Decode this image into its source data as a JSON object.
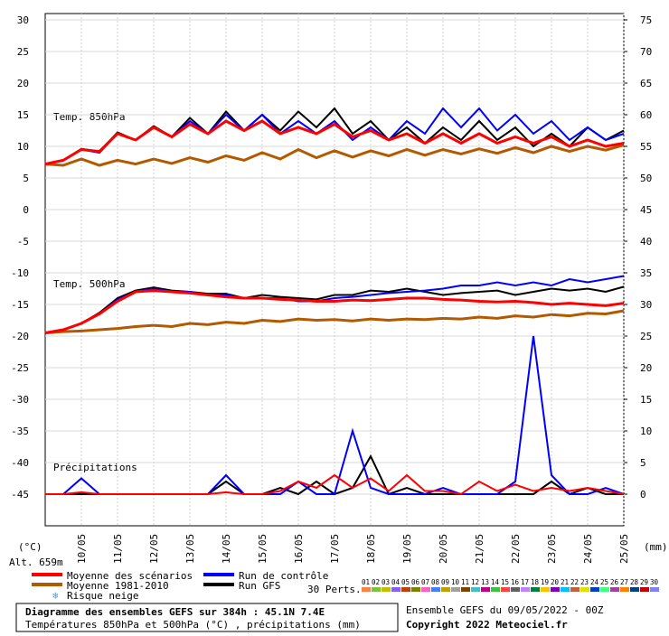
{
  "chart_data": {
    "type": "line",
    "title": "Diagramme des ensembles GEFS sur 384h : 45.1N 7.4E",
    "subtitle": "Températures 850hPa et 500hPa (°C) , précipitations (mm)",
    "run_info": "Ensemble GEFS du 09/05/2022 - 00Z",
    "copyright": "Copyright 2022 Meteociel.fr",
    "altitude": "Alt. 659m",
    "ylabel": "(°C)",
    "y2label": "(mm)",
    "annotations": [
      "Temp. 850hPa",
      "Temp. 500hPa",
      "Précipitations"
    ],
    "snow_label": "Risque neige",
    "xlim": [
      0,
      384
    ],
    "ylim": [
      -50,
      30
    ],
    "y2lim": [
      -5,
      75
    ],
    "yticks": [
      30,
      25,
      20,
      15,
      10,
      5,
      0,
      -5,
      -10,
      -15,
      -20,
      -25,
      -30,
      -35,
      -40,
      -45
    ],
    "y2ticks": [
      75,
      70,
      65,
      60,
      55,
      50,
      45,
      40,
      35,
      30,
      25,
      20,
      15,
      10,
      5,
      0
    ],
    "xticks": [
      {
        "value": 24,
        "label": "10/05"
      },
      {
        "value": 48,
        "label": "11/05"
      },
      {
        "value": 72,
        "label": "12/05"
      },
      {
        "value": 96,
        "label": "13/05"
      },
      {
        "value": 120,
        "label": "14/05"
      },
      {
        "value": 144,
        "label": "15/05"
      },
      {
        "value": 168,
        "label": "16/05"
      },
      {
        "value": 192,
        "label": "17/05"
      },
      {
        "value": 216,
        "label": "18/05"
      },
      {
        "value": 240,
        "label": "19/05"
      },
      {
        "value": 264,
        "label": "20/05"
      },
      {
        "value": 288,
        "label": "21/05"
      },
      {
        "value": 312,
        "label": "22/05"
      },
      {
        "value": 336,
        "label": "23/05"
      },
      {
        "value": 360,
        "label": "24/05"
      },
      {
        "value": 384,
        "label": "25/05"
      }
    ],
    "grid": true,
    "x": [
      0,
      12,
      24,
      36,
      48,
      60,
      72,
      84,
      96,
      108,
      120,
      132,
      144,
      156,
      168,
      180,
      192,
      204,
      216,
      228,
      240,
      252,
      264,
      276,
      288,
      300,
      312,
      324,
      336,
      348,
      360,
      372,
      384
    ],
    "series": [
      {
        "name": "Moyenne des scénarios",
        "color": "#ff0000",
        "width": 3,
        "values850": [
          7.2,
          7.8,
          9.5,
          9.2,
          12,
          11,
          13,
          11.5,
          13.5,
          12,
          14,
          12.5,
          14,
          12,
          13,
          12,
          13.5,
          11.5,
          12.5,
          11,
          12,
          10.5,
          12,
          10.5,
          12,
          10.5,
          11.5,
          10.5,
          11.5,
          10,
          11,
          10,
          10.5
        ],
        "values500": [
          -19.5,
          -19,
          -18,
          -16.5,
          -14.5,
          -13,
          -12.8,
          -13,
          -13.2,
          -13.5,
          -13.8,
          -14,
          -14,
          -14.2,
          -14.3,
          -14.5,
          -14.5,
          -14.3,
          -14.4,
          -14.2,
          -14,
          -14,
          -14.2,
          -14.3,
          -14.5,
          -14.6,
          -14.5,
          -14.7,
          -15,
          -14.8,
          -15,
          -15.2,
          -14.8
        ],
        "precip": [
          0,
          0,
          0.3,
          0,
          0,
          0,
          0,
          0,
          0,
          0,
          0.3,
          0,
          0,
          0.5,
          2,
          1,
          3,
          1,
          2.5,
          0.5,
          3,
          0.5,
          0.5,
          0,
          2,
          0.5,
          1.5,
          0.5,
          1,
          0.5,
          1,
          0.5,
          0
        ]
      },
      {
        "name": "Moyenne 1981-2010",
        "color": "#b35900",
        "width": 3,
        "values850": [
          7.2,
          7,
          8,
          7,
          7.8,
          7.2,
          8,
          7.3,
          8.2,
          7.5,
          8.5,
          7.8,
          9,
          8,
          9.5,
          8.2,
          9.3,
          8.3,
          9.3,
          8.5,
          9.5,
          8.6,
          9.5,
          8.8,
          9.6,
          8.9,
          9.8,
          9,
          10,
          9.2,
          10,
          9.4,
          10.2
        ],
        "values500": [
          -19.5,
          -19.3,
          -19.2,
          -19,
          -18.8,
          -18.5,
          -18.3,
          -18.5,
          -18,
          -18.2,
          -17.8,
          -18,
          -17.5,
          -17.7,
          -17.3,
          -17.5,
          -17.4,
          -17.6,
          -17.3,
          -17.5,
          -17.3,
          -17.4,
          -17.2,
          -17.3,
          -17,
          -17.2,
          -16.8,
          -17,
          -16.6,
          -16.8,
          -16.4,
          -16.5,
          -16
        ]
      },
      {
        "name": "Run de contrôle",
        "color": "#0000ff",
        "width": 2,
        "values850": [
          7.2,
          7.8,
          9.5,
          9,
          12,
          11,
          13,
          11.5,
          14,
          12,
          15,
          12.5,
          15,
          12,
          14,
          12,
          14,
          11,
          13,
          11,
          14,
          12,
          16,
          13,
          16,
          12.5,
          15,
          12,
          14,
          11,
          13,
          11,
          12
        ],
        "values500": [
          -19.5,
          -19,
          -18,
          -16.5,
          -14.2,
          -13,
          -12.5,
          -13,
          -13,
          -13.5,
          -13.5,
          -14,
          -14,
          -14,
          -14.5,
          -14.5,
          -14,
          -13.8,
          -13.5,
          -13.2,
          -13,
          -12.8,
          -12.5,
          -12,
          -12,
          -11.5,
          -12,
          -11.5,
          -12,
          -11,
          -11.5,
          -11,
          -10.5
        ],
        "precip": [
          0,
          0,
          2.5,
          0,
          0,
          0,
          0,
          0,
          0,
          0,
          3,
          0,
          0,
          0,
          2,
          0,
          0,
          10,
          1,
          0,
          0,
          0,
          1,
          0,
          0,
          0,
          2,
          25,
          3,
          0,
          0,
          1,
          0
        ]
      },
      {
        "name": "Run GFS",
        "color": "#000000",
        "width": 2,
        "values850": [
          7.2,
          7.8,
          9.6,
          9.2,
          12.2,
          11,
          13.2,
          11.5,
          14.5,
          12,
          15.5,
          12.5,
          15,
          12.5,
          15.5,
          13,
          16,
          12,
          14,
          11,
          13,
          10.5,
          13,
          11,
          14,
          11,
          13,
          10,
          12,
          10,
          13,
          11,
          12.5
        ],
        "values500": [
          -19.5,
          -19,
          -18,
          -16.3,
          -14,
          -12.8,
          -12.3,
          -12.8,
          -13,
          -13.3,
          -13.3,
          -14,
          -13.5,
          -13.8,
          -14,
          -14.2,
          -13.5,
          -13.5,
          -12.8,
          -13,
          -12.5,
          -13,
          -13.5,
          -13.2,
          -13,
          -12.8,
          -13.5,
          -13,
          -12.5,
          -12.8,
          -12.5,
          -13,
          -12.2
        ],
        "precip": [
          0,
          0,
          0,
          0,
          0,
          0,
          0,
          0,
          0,
          0,
          2,
          0,
          0,
          1,
          0,
          2,
          0,
          1,
          6,
          0,
          1,
          0,
          0,
          0,
          0,
          0,
          0,
          0,
          2,
          0,
          1,
          0,
          0
        ]
      }
    ],
    "perturbations": {
      "label": "30 Perts.",
      "names": [
        "01",
        "02",
        "03",
        "04",
        "05",
        "06",
        "07",
        "08",
        "09",
        "10",
        "11",
        "12",
        "13",
        "14",
        "15",
        "16",
        "17",
        "18",
        "19",
        "20",
        "21",
        "22",
        "23",
        "24",
        "25",
        "26",
        "27",
        "28",
        "29",
        "30"
      ],
      "colors": [
        "#ff8040",
        "#80c040",
        "#c0c000",
        "#8060ff",
        "#c04000",
        "#808000",
        "#ff60c0",
        "#4080ff",
        "#c0a000",
        "#a0a0a0",
        "#804000",
        "#40c0c0",
        "#c00080",
        "#40c040",
        "#ff4040",
        "#606060",
        "#c080ff",
        "#008040",
        "#ffc000",
        "#8000c0",
        "#00c0ff",
        "#c06040",
        "#e0e000",
        "#0040c0",
        "#40ff80",
        "#a040a0",
        "#ff8000",
        "#004080",
        "#c00000",
        "#8080ff"
      ]
    }
  }
}
